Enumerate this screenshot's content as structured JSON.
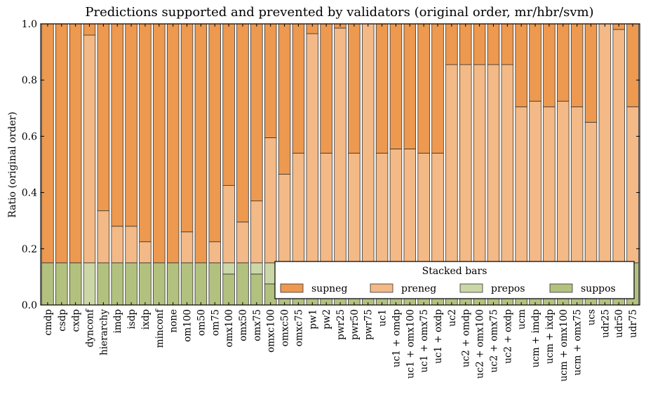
{
  "chart_data": {
    "type": "bar",
    "stacked": true,
    "title": "Predictions supported and prevented by validators (original order, mr/hbr/svm)",
    "xlabel": "",
    "ylabel": "Ratio (original order)",
    "ylim": [
      0,
      1.0
    ],
    "yticks": [
      "0.0",
      "0.2",
      "0.4",
      "0.6",
      "0.8",
      "1.0"
    ],
    "grid": false,
    "legend": {
      "title": "Stacked bars",
      "placement": "lower-right"
    },
    "categories": [
      "cmdp",
      "csdp",
      "cxdp",
      "dynconf",
      "hierarchy",
      "imdp",
      "isdp",
      "ixdp",
      "minconf",
      "none",
      "om100",
      "om50",
      "om75",
      "omx100",
      "omx50",
      "omx75",
      "omxc100",
      "omxc50",
      "omxc75",
      "pw1",
      "pw2",
      "pwr25",
      "pwr50",
      "pwr75",
      "uc1",
      "uc1 + omdp",
      "uc1 + omx100",
      "uc1 + omx75",
      "uc1 + oxdp",
      "uc2",
      "uc2 + omdp",
      "uc2 + omx100",
      "uc2 + omx75",
      "uc2 + oxdp",
      "ucm",
      "ucm + imdp",
      "ucm + ixdp",
      "ucm + omx100",
      "ucm + omx75",
      "ucs",
      "udr25",
      "udr50",
      "udr75"
    ],
    "series": [
      {
        "name": "suppos",
        "color": "#b3c17f",
        "values": [
          0.15,
          0.15,
          0.15,
          0,
          0.15,
          0.15,
          0.15,
          0.15,
          0.15,
          0.15,
          0.15,
          0.15,
          0.15,
          0.11,
          0.15,
          0.11,
          0.075,
          0.11,
          0.15,
          0.15,
          0.15,
          0.15,
          0.15,
          0.15,
          0.15,
          0.15,
          0.15,
          0.15,
          0.15,
          0.15,
          0.15,
          0.15,
          0.15,
          0.15,
          0.15,
          0.15,
          0.15,
          0.15,
          0.15,
          0.15,
          0.15,
          0.15,
          0.15
        ]
      },
      {
        "name": "prepos",
        "color": "#ccd7a8",
        "values": [
          0,
          0,
          0,
          0.15,
          0,
          0,
          0,
          0,
          0,
          0,
          0,
          0,
          0,
          0.04,
          0,
          0.04,
          0.075,
          0.04,
          0,
          0,
          0,
          0,
          0,
          0,
          0,
          0,
          0,
          0,
          0,
          0,
          0,
          0,
          0,
          0,
          0,
          0,
          0,
          0,
          0,
          0,
          0,
          0,
          0
        ]
      },
      {
        "name": "preneg",
        "color": "#f3b986",
        "values": [
          0,
          0,
          0,
          0.81,
          0.185,
          0.13,
          0.13,
          0.075,
          0,
          0,
          0.11,
          0,
          0.075,
          0.275,
          0.145,
          0.22,
          0.445,
          0.315,
          0.39,
          0.815,
          0.39,
          0.835,
          0.39,
          0.85,
          0.39,
          0.405,
          0.405,
          0.39,
          0.39,
          0.705,
          0.705,
          0.705,
          0.705,
          0.705,
          0.555,
          0.575,
          0.555,
          0.575,
          0.555,
          0.5,
          0.85,
          0.83,
          0.555
        ]
      },
      {
        "name": "supneg",
        "color": "#ed994f",
        "values": [
          0.85,
          0.85,
          0.85,
          0.04,
          0.665,
          0.72,
          0.72,
          0.775,
          0.85,
          0.85,
          0.74,
          0.85,
          0.775,
          0.575,
          0.705,
          0.63,
          0.405,
          0.535,
          0.46,
          0.035,
          0.46,
          0.015,
          0.46,
          0,
          0.46,
          0.445,
          0.445,
          0.46,
          0.46,
          0.145,
          0.145,
          0.145,
          0.145,
          0.145,
          0.295,
          0.275,
          0.295,
          0.275,
          0.295,
          0.35,
          0,
          0.02,
          0.295
        ]
      }
    ]
  }
}
